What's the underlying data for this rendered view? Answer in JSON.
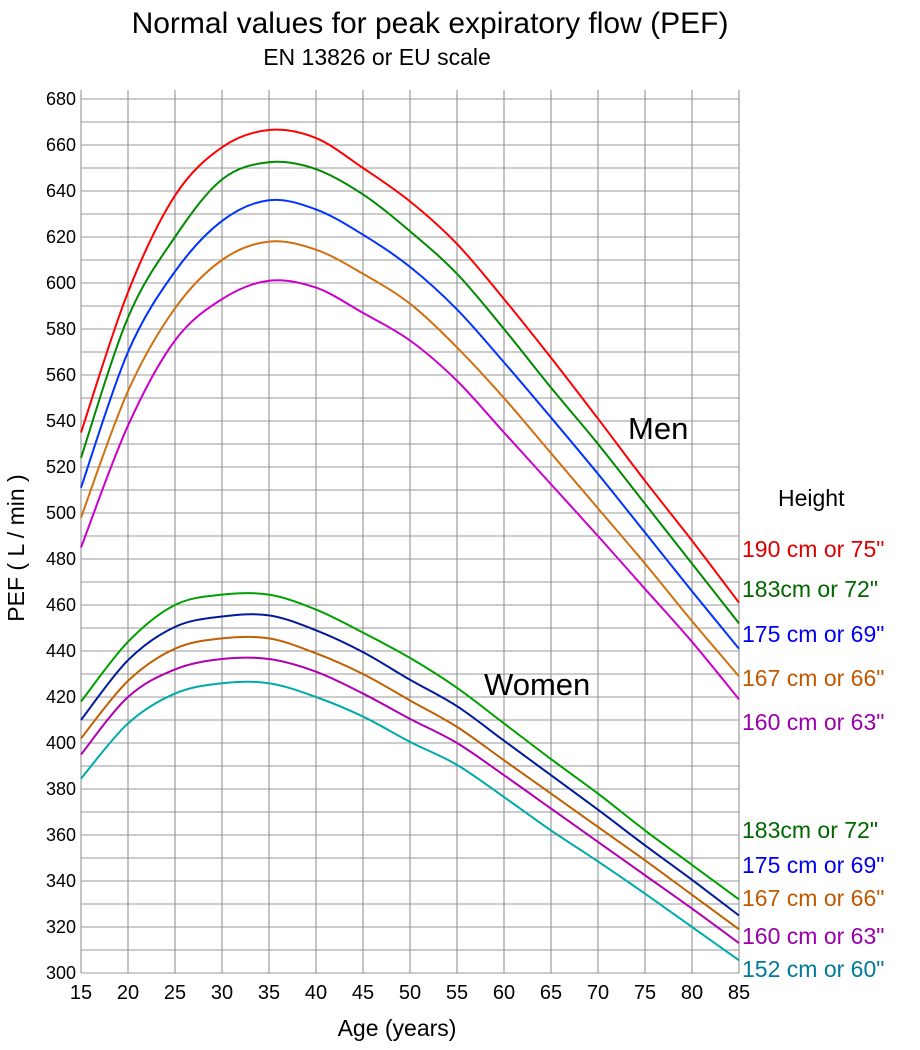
{
  "chart_data": {
    "type": "line",
    "title": "Normal values for peak expiratory flow (PEF)",
    "subtitle": "EN 13826 or EU scale",
    "xlabel": "Age (years)",
    "ylabel": "PEF ( L / min )",
    "xlim": [
      15,
      85
    ],
    "ylim": [
      300,
      680
    ],
    "x_ticks": [
      "15",
      "20",
      "25",
      "30",
      "35",
      "40",
      "45",
      "50",
      "55",
      "60",
      "65",
      "70",
      "75",
      "80",
      "85"
    ],
    "y_ticks": [
      "300",
      "320",
      "340",
      "360",
      "380",
      "400",
      "420",
      "440",
      "460",
      "480",
      "500",
      "520",
      "540",
      "560",
      "580",
      "600",
      "620",
      "640",
      "660",
      "680"
    ],
    "grid": true,
    "x": [
      15,
      20,
      25,
      30,
      35,
      40,
      45,
      50,
      55,
      60,
      65,
      70,
      75,
      80,
      85
    ],
    "legend_title": "Height",
    "groups": [
      {
        "name": "Men",
        "series": [
          {
            "name": "190 cm or 75\"",
            "color": "#ff0000",
            "label_color": "#dd0000",
            "values": [
              535,
              596,
              638,
              659,
              666.5,
              663,
              650,
              635.5,
              617,
              593,
              567.5,
              541,
              514,
              488,
              461
            ]
          },
          {
            "name": "183cm or 72\"",
            "color": "#008a00",
            "label_color": "#006600",
            "values": [
              524,
              585,
              620,
              645,
              652.5,
              649.5,
              638.5,
              622.5,
              604,
              580,
              554.5,
              530,
              504,
              478,
              452
            ]
          },
          {
            "name": "175 cm or 69\"",
            "color": "#0033ff",
            "label_color": "#0000ee",
            "values": [
              511,
              570,
              605,
              627,
              636,
              632,
              621,
              607,
              588.5,
              565.5,
              541.5,
              517,
              491.5,
              466,
              441
            ]
          },
          {
            "name": "167 cm or 66\"",
            "color": "#d07010",
            "label_color": "#c05800",
            "values": [
              498,
              553,
              589,
              610,
              618,
              614.5,
              604,
              591,
              572,
              550,
              526,
              502,
              478,
              453,
              429
            ]
          },
          {
            "name": "160 cm or 63\"",
            "color": "#cc00cc",
            "label_color": "#9900aa",
            "values": [
              485,
              538,
              575,
              593,
              601,
              598,
              587,
              575,
              557.5,
              535,
              512.5,
              490,
              467,
              444,
              419
            ]
          }
        ]
      },
      {
        "name": "Women",
        "series": [
          {
            "name": "183cm or 72\"",
            "color": "#00a000",
            "label_color": "#006600",
            "values": [
              418,
              444,
              460,
              464.5,
              464.5,
              458,
              448,
              437,
              424,
              408.5,
              393,
              378,
              362,
              347,
              332
            ]
          },
          {
            "name": "175 cm or 69\"",
            "color": "#001a99",
            "label_color": "#0000ee",
            "values": [
              410,
              436,
              450.5,
              455,
              455.5,
              449,
              439.5,
              427.5,
              416,
              401,
              386,
              371,
              355.5,
              340.5,
              325
            ]
          },
          {
            "name": "167 cm or 66\"",
            "color": "#c06000",
            "label_color": "#c05800",
            "values": [
              402,
              427,
              441,
              445.5,
              445.5,
              439,
              430,
              418.5,
              407,
              392.5,
              378,
              363.5,
              349,
              334,
              319
            ]
          },
          {
            "name": "160 cm or 63\"",
            "color": "#b000b0",
            "label_color": "#9900aa",
            "values": [
              395,
              420,
              432,
              436.5,
              436.5,
              431,
              421.5,
              410.5,
              400,
              386,
              371.5,
              357,
              342.5,
              328,
              313
            ]
          },
          {
            "name": "152 cm or 60\"",
            "color": "#00aaaa",
            "label_color": "#007a99",
            "values": [
              384.5,
              408.5,
              421.5,
              426,
              426,
              420,
              411.5,
              400.5,
              390.5,
              376.5,
              362,
              348.5,
              334.5,
              320,
              305.5
            ]
          }
        ]
      }
    ]
  }
}
